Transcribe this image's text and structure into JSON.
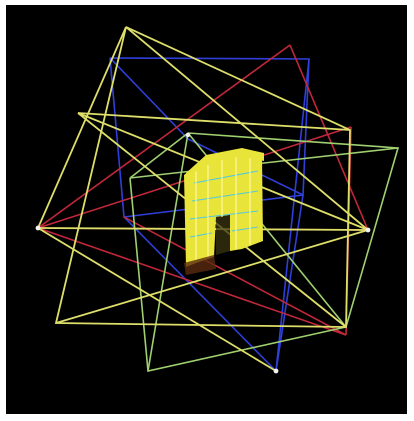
{
  "scene": {
    "background_color": "#000000",
    "frame_color": "#ffffff",
    "wireframe_colors": {
      "red": "#c0283a",
      "blue": "#2f3fd8",
      "yellow": "#dede6a",
      "green": "#9fd070",
      "model": "#e8e43a",
      "model_accent": "#4fc8e0"
    },
    "icons": [
      "camera-frustum-icon",
      "point-cloud-model-icon"
    ]
  }
}
